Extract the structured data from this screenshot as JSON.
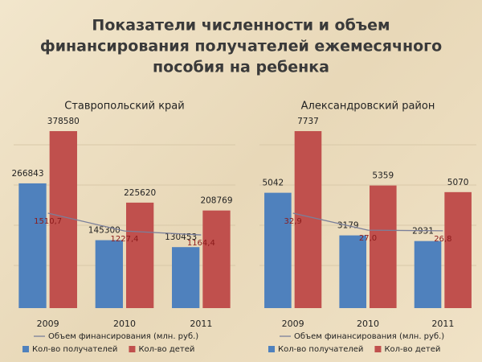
{
  "title": [
    "Показатели численности и объем",
    "финансирования получателей ежемесячного",
    "пособия на ребенка"
  ],
  "chart_data": [
    {
      "type": "bar",
      "title": "Ставропольский край",
      "categories": [
        "2009",
        "2010",
        "2011"
      ],
      "series": [
        {
          "name": "Кол-во получателей",
          "color": "#4f81bd",
          "values": [
            266843,
            145300,
            130453
          ]
        },
        {
          "name": "Кол-во детей",
          "color": "#c0504d",
          "values": [
            378580,
            225620,
            208769
          ]
        },
        {
          "name": "Объем финансирования (млн. руб.)",
          "color": "#7a7f9a",
          "type": "line",
          "values": [
            1510.7,
            1227.4,
            1164.4
          ],
          "value_labels": [
            "1510,7",
            "1227,4",
            "1164,4"
          ]
        }
      ]
    },
    {
      "type": "bar",
      "title": "Александровский район",
      "categories": [
        "2009",
        "2010",
        "2011"
      ],
      "series": [
        {
          "name": "Кол-во получателей",
          "color": "#4f81bd",
          "values": [
            5042,
            3179,
            2931
          ]
        },
        {
          "name": "Кол-во детей",
          "color": "#c0504d",
          "values": [
            7737,
            5359,
            5070
          ]
        },
        {
          "name": "Объем финансирования (млн. руб.)",
          "color": "#7a7f9a",
          "type": "line",
          "values": [
            32.9,
            27.0,
            26.8
          ],
          "value_labels": [
            "32,9",
            "27,0",
            "26,8"
          ]
        }
      ]
    }
  ]
}
